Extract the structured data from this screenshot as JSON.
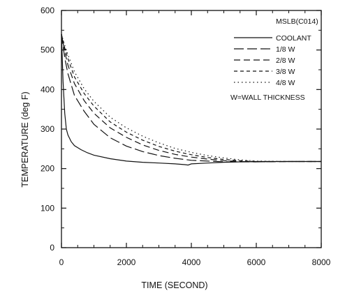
{
  "chart_data": {
    "type": "line",
    "title": "MSLB(C014)",
    "xlabel": "TIME (SECOND)",
    "ylabel": "TEMPERATURE (deg F)",
    "xlim": [
      0,
      8000
    ],
    "ylim": [
      0,
      600
    ],
    "xticks": [
      0,
      2000,
      4000,
      6000,
      8000
    ],
    "yticks": [
      0,
      100,
      200,
      300,
      400,
      500,
      600
    ],
    "grid": false,
    "legend_position": "top-right",
    "annotation": "W=WALL THICKNESS",
    "series": [
      {
        "name": "COOLANT",
        "style": "solid",
        "x": [
          0,
          50,
          100,
          150,
          200,
          300,
          400,
          600,
          800,
          1000,
          1500,
          2000,
          2500,
          3000,
          3500,
          3800,
          3900,
          4000,
          4500,
          5000,
          5500,
          6000,
          7000,
          8000
        ],
        "y": [
          540,
          420,
          340,
          300,
          285,
          268,
          258,
          248,
          240,
          234,
          225,
          219,
          216,
          214,
          212,
          210,
          209,
          212,
          214,
          216,
          217,
          218,
          218,
          218
        ]
      },
      {
        "name": "1/8 W",
        "style": "longdash",
        "x": [
          0,
          100,
          200,
          400,
          700,
          1000,
          1500,
          2000,
          2500,
          3000,
          3500,
          4000,
          4500,
          5000,
          5500,
          6000,
          7000,
          8000
        ],
        "y": [
          540,
          480,
          440,
          385,
          345,
          312,
          278,
          257,
          243,
          233,
          226,
          221,
          219,
          217,
          217,
          217,
          218,
          218
        ]
      },
      {
        "name": "2/8 W",
        "style": "dash",
        "x": [
          0,
          100,
          200,
          400,
          700,
          1000,
          1500,
          2000,
          2500,
          3000,
          3500,
          4000,
          4500,
          5000,
          5500,
          6000,
          7000,
          8000
        ],
        "y": [
          540,
          495,
          462,
          415,
          372,
          340,
          303,
          279,
          260,
          246,
          236,
          229,
          224,
          220,
          218,
          217,
          218,
          218
        ]
      },
      {
        "name": "3/8 W",
        "style": "shortdash",
        "x": [
          0,
          100,
          200,
          400,
          700,
          1000,
          1500,
          2000,
          2500,
          3000,
          3500,
          4000,
          4500,
          5000,
          5500,
          6000,
          7000,
          8000
        ],
        "y": [
          540,
          505,
          478,
          432,
          390,
          358,
          318,
          292,
          272,
          256,
          244,
          235,
          228,
          223,
          220,
          218,
          218,
          218
        ]
      },
      {
        "name": "4/8 W",
        "style": "dotted",
        "x": [
          0,
          100,
          200,
          400,
          700,
          1000,
          1500,
          2000,
          2500,
          3000,
          3500,
          4000,
          4500,
          5000,
          5500,
          6000,
          7000,
          8000
        ],
        "y": [
          540,
          512,
          488,
          445,
          402,
          370,
          330,
          303,
          282,
          265,
          251,
          241,
          233,
          227,
          222,
          219,
          218,
          218
        ]
      }
    ]
  }
}
